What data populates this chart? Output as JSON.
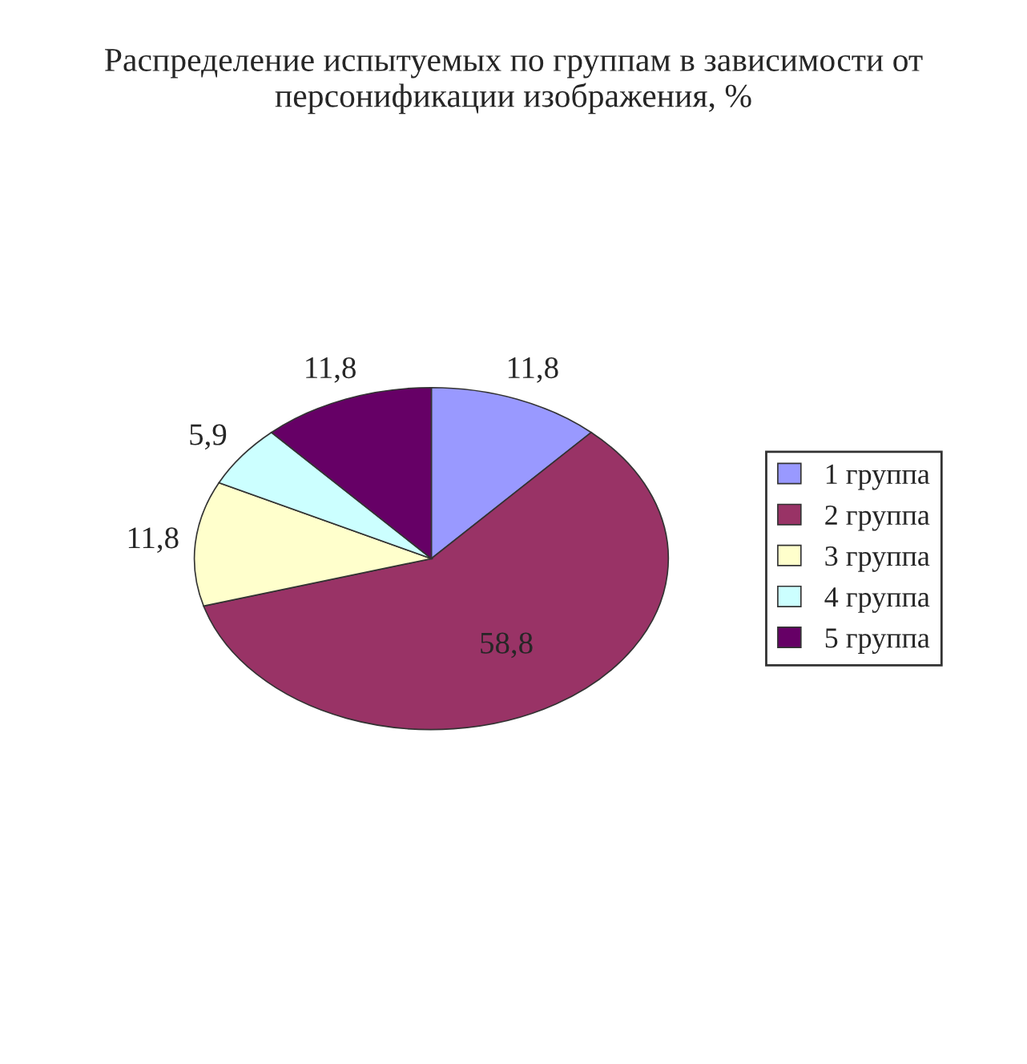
{
  "chart_data": {
    "type": "pie",
    "title": "Распределение испытуемых по группам в зависимости от персонификации изображения, %",
    "categories": [
      "1 группа",
      "2 группа",
      "3 группа",
      "4 группа",
      "5 группа"
    ],
    "values": [
      11.8,
      58.8,
      11.8,
      5.9,
      11.8
    ],
    "value_labels": [
      "11,8",
      "58,8",
      "11,8",
      "5,9",
      "11,8"
    ],
    "colors": [
      "#9999ff",
      "#993366",
      "#ffffcc",
      "#ccffff",
      "#660066"
    ],
    "legend": "right"
  }
}
